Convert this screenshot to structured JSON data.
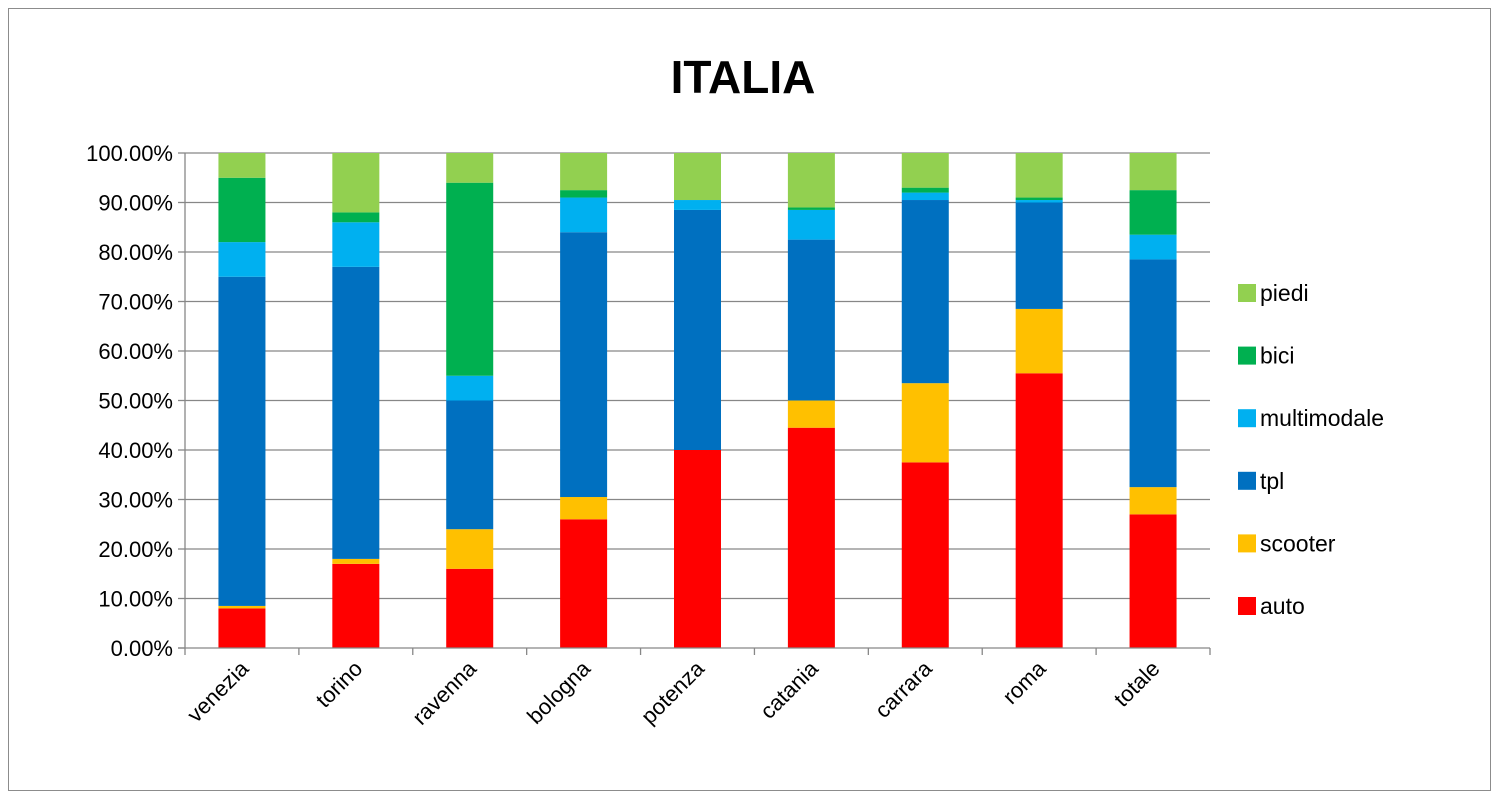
{
  "chart_data": {
    "type": "bar",
    "stacked": true,
    "title": "ITALIA",
    "categories": [
      "venezia",
      "torino",
      "ravenna",
      "bologna",
      "potenza",
      "catania",
      "carrara",
      "roma",
      "totale"
    ],
    "series": [
      {
        "name": "auto",
        "color": "#ff0000",
        "values": [
          8.0,
          17.0,
          16.0,
          26.0,
          40.0,
          44.5,
          37.5,
          55.5,
          27.0
        ]
      },
      {
        "name": "scooter",
        "color": "#ffc000",
        "values": [
          0.5,
          1.0,
          8.0,
          4.5,
          0.0,
          5.5,
          16.0,
          13.0,
          5.5
        ]
      },
      {
        "name": "tpl",
        "color": "#0070c0",
        "values": [
          66.5,
          59.0,
          26.0,
          53.5,
          48.5,
          32.5,
          37.0,
          21.5,
          46.0
        ]
      },
      {
        "name": "multimodale",
        "color": "#00b0f0",
        "values": [
          7.0,
          9.0,
          5.0,
          7.0,
          2.0,
          6.0,
          1.5,
          0.5,
          5.0
        ]
      },
      {
        "name": "bici",
        "color": "#00b050",
        "values": [
          13.0,
          2.0,
          39.0,
          1.5,
          0.0,
          0.5,
          1.0,
          0.5,
          9.0
        ]
      },
      {
        "name": "piedi",
        "color": "#92d050",
        "values": [
          5.0,
          12.0,
          6.0,
          7.5,
          9.5,
          11.0,
          7.0,
          9.0,
          7.5
        ]
      }
    ],
    "y_ticks": [
      "0.00%",
      "10.00%",
      "20.00%",
      "30.00%",
      "40.00%",
      "50.00%",
      "60.00%",
      "70.00%",
      "80.00%",
      "90.00%",
      "100.00%"
    ],
    "ylim": [
      0,
      100
    ],
    "grid": true,
    "legend_position": "right"
  }
}
